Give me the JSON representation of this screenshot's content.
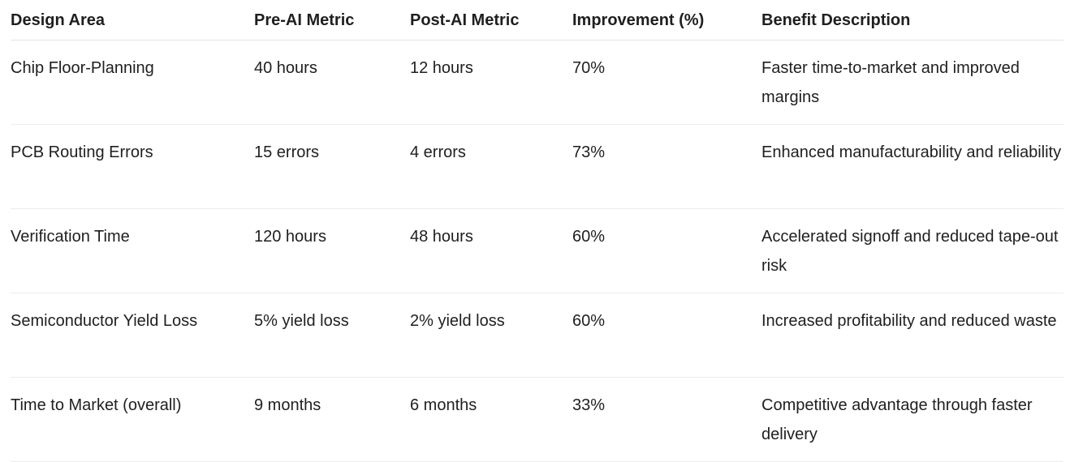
{
  "table": {
    "header": [
      "Design Area",
      "Pre-AI Metric",
      "Post-AI Metric",
      "Improvement (%)",
      "Benefit Description"
    ],
    "rows": [
      [
        "Chip Floor-Planning",
        "40 hours",
        "12 hours",
        "70%",
        "Faster time-to-market and improved margins"
      ],
      [
        "PCB Routing Errors",
        "15 errors",
        "4 errors",
        "73%",
        "Enhanced manufacturability and reliability"
      ],
      [
        "Verification Time",
        "120 hours",
        "48 hours",
        "60%",
        "Accelerated signoff and reduced tape-out risk"
      ],
      [
        "Semiconductor Yield Loss",
        "5% yield loss",
        "2% yield loss",
        "60%",
        "Increased profitability and reduced waste"
      ],
      [
        "Time to Market (overall)",
        "9 months",
        "6 months",
        "33%",
        "Competitive advantage through faster delivery"
      ]
    ]
  }
}
